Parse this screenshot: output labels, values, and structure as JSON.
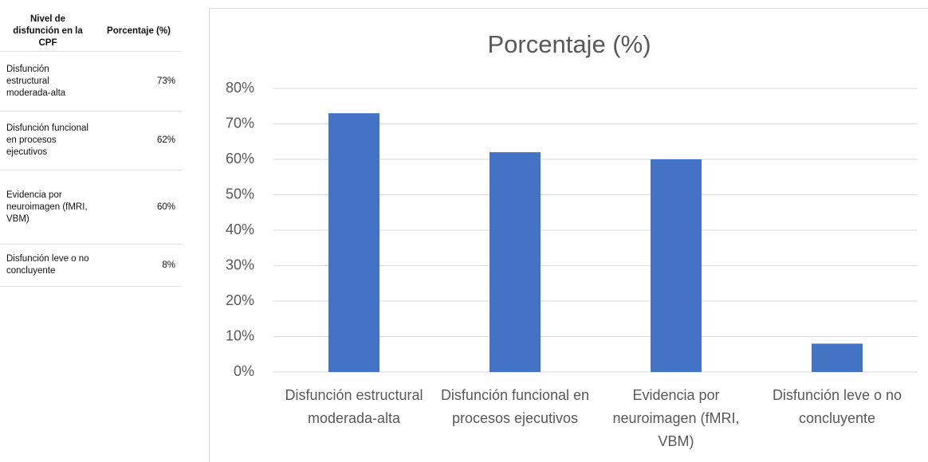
{
  "table": {
    "header": [
      "Nivel de disfunción en la CPF",
      "Porcentaje (%)"
    ],
    "rows": [
      [
        "Disfunción estructural moderada-alta",
        "73%"
      ],
      [
        "Disfunción funcional en procesos ejecutivos",
        "62%"
      ],
      [
        "Evidencia por neuroimagen (fMRI, VBM)",
        "60%"
      ],
      [
        "Disfunción leve o no concluyente",
        "8%"
      ]
    ]
  },
  "chart_data": {
    "type": "bar",
    "title": "Porcentaje (%)",
    "categories": [
      "Disfunción estructural moderada-alta",
      "Disfunción funcional en procesos ejecutivos",
      "Evidencia por neuroimagen (fMRI, VBM)",
      "Disfunción leve o no concluyente"
    ],
    "values": [
      73,
      62,
      60,
      8
    ],
    "color": "#4472c4",
    "ylim": [
      0,
      80
    ],
    "yticks": [
      {
        "value": 0,
        "label": "0%"
      },
      {
        "value": 10,
        "label": "10%"
      },
      {
        "value": 20,
        "label": "20%"
      },
      {
        "value": 30,
        "label": "30%"
      },
      {
        "value": 40,
        "label": "40%"
      },
      {
        "value": 50,
        "label": "50%"
      },
      {
        "value": 60,
        "label": "60%"
      },
      {
        "value": 70,
        "label": "70%"
      },
      {
        "value": 80,
        "label": "80%"
      }
    ],
    "grid": true
  }
}
